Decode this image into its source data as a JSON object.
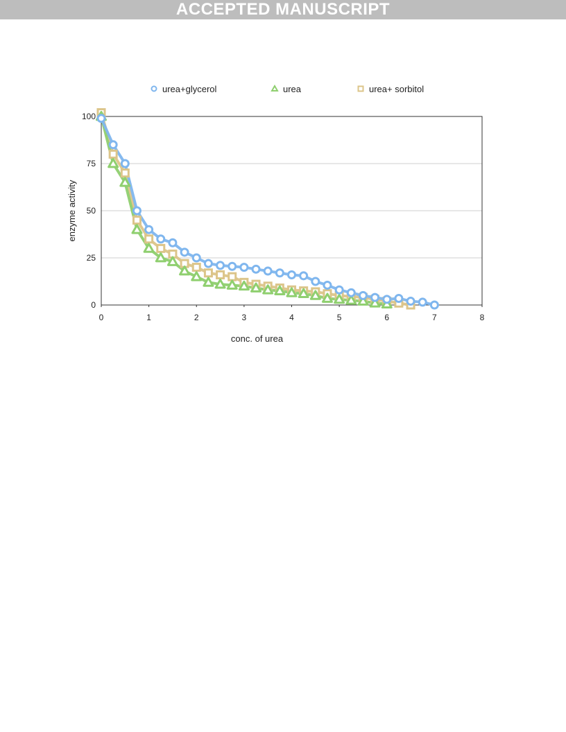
{
  "banner": {
    "text": "ACCEPTED MANUSCRIPT",
    "color": "#bdbdbd"
  },
  "chart_data": {
    "type": "line",
    "xlabel": "conc. of urea",
    "ylabel": "enzyme activity",
    "xlim": [
      0,
      8
    ],
    "ylim": [
      0,
      100
    ],
    "xticks": [
      0,
      1,
      2,
      3,
      4,
      5,
      6,
      7,
      8
    ],
    "yticks": [
      0,
      25,
      50,
      75,
      100
    ],
    "grid": "horizontal",
    "legend_position": "top",
    "series": [
      {
        "name": "urea+glycerol",
        "marker": "circle",
        "color": "#7fb6ee",
        "x": [
          0,
          0.25,
          0.5,
          0.75,
          1,
          1.25,
          1.5,
          1.75,
          2,
          2.25,
          2.5,
          2.75,
          3,
          3.25,
          3.5,
          3.75,
          4,
          4.25,
          4.5,
          4.75,
          5,
          5.25,
          5.5,
          5.75,
          6,
          6.25,
          6.5,
          6.75,
          7
        ],
        "y": [
          99,
          85,
          75,
          50,
          40,
          35,
          33,
          28,
          25,
          22,
          21,
          20.5,
          20,
          19,
          18,
          17,
          16,
          15.5,
          12.5,
          10.5,
          8,
          6.5,
          5,
          4,
          3,
          3.5,
          2,
          1.5,
          0
        ]
      },
      {
        "name": "urea",
        "marker": "triangle",
        "color": "#8fcf6f",
        "x": [
          0,
          0.25,
          0.5,
          0.75,
          1,
          1.25,
          1.5,
          1.75,
          2,
          2.25,
          2.5,
          2.75,
          3,
          3.25,
          3.5,
          3.75,
          4,
          4.25,
          4.5,
          4.75,
          5,
          5.25,
          5.5,
          5.75,
          6
        ],
        "y": [
          100,
          75,
          65,
          40,
          30,
          25,
          23,
          18,
          15,
          12,
          11,
          10.5,
          10,
          9,
          8,
          7.5,
          6.5,
          6,
          5,
          3.5,
          3,
          2.5,
          2,
          1,
          0.5
        ]
      },
      {
        "name": "urea+ sorbitol",
        "marker": "square",
        "color": "#dcc58a",
        "x": [
          0,
          0.25,
          0.5,
          0.75,
          1,
          1.25,
          1.5,
          1.75,
          2,
          2.25,
          2.5,
          2.75,
          3,
          3.25,
          3.5,
          3.75,
          4,
          4.25,
          4.5,
          4.75,
          5,
          5.25,
          5.5,
          5.75,
          6,
          6.25,
          6.5
        ],
        "y": [
          102,
          80,
          70,
          45,
          35,
          30,
          27,
          22,
          20,
          17,
          16,
          15,
          12,
          11,
          10,
          9,
          8,
          7.5,
          7,
          6,
          5,
          4.5,
          4,
          3,
          2,
          1,
          0
        ]
      }
    ]
  }
}
